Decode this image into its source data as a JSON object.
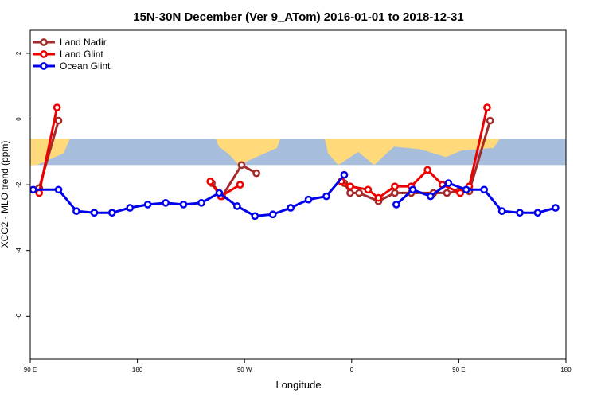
{
  "chart_data": {
    "type": "line",
    "title": "15N-30N December (Ver 9_ATom)   2016-01-01 to 2018-12-31",
    "xlabel": "Longitude",
    "ylabel": "XCO2 - MLO trend (ppm)",
    "xlim": [
      90,
      450
    ],
    "ylim": [
      -7.3,
      2.7
    ],
    "x_ticks": [
      {
        "value": 90,
        "label": "90 E"
      },
      {
        "value": 162,
        "label": "180"
      },
      {
        "value": 234,
        "label": "90 W"
      },
      {
        "value": 306,
        "label": "0"
      },
      {
        "value": 378,
        "label": "90 E"
      },
      {
        "value": 450,
        "label": "180"
      }
    ],
    "y_ticks": [
      {
        "value": 2,
        "label": "2"
      },
      {
        "value": 0,
        "label": "0"
      },
      {
        "value": -2,
        "label": "-2"
      },
      {
        "value": -4,
        "label": "-4"
      },
      {
        "value": -6,
        "label": "-6"
      }
    ],
    "legend_position": "top-left",
    "map_band": {
      "y_top": -0.6,
      "y_bottom": -1.4,
      "ocean_color": "#A6BDDB",
      "land_color": "#FFD97A"
    },
    "series": [
      {
        "name": "Land Nadir",
        "color": "#A52A2A",
        "segments": [
          [
            [
              96,
              -2.1
            ],
            [
              109,
              -0.05
            ]
          ],
          [
            [
              212,
              -1.95
            ],
            [
              219,
              -2.35
            ],
            [
              232,
              -1.4
            ],
            [
              242,
              -1.65
            ]
          ],
          [
            [
              301,
              -1.95
            ],
            [
              305,
              -2.25
            ],
            [
              311,
              -2.25
            ],
            [
              324,
              -2.5
            ],
            [
              335,
              -2.25
            ],
            [
              346,
              -2.25
            ],
            [
              361,
              -2.25
            ],
            [
              370,
              -2.25
            ],
            [
              378,
              -2.2
            ],
            [
              385,
              -2.2
            ],
            [
              399,
              -0.05
            ]
          ]
        ]
      },
      {
        "name": "Land Glint",
        "color": "#EE0000",
        "segments": [
          [
            [
              96,
              -2.25
            ],
            [
              108,
              0.35
            ]
          ],
          [
            [
              211,
              -1.9
            ],
            [
              218,
              -2.35
            ],
            [
              231,
              -2.0
            ]
          ],
          [
            [
              299,
              -1.9
            ],
            [
              305,
              -2.05
            ],
            [
              317,
              -2.15
            ],
            [
              324,
              -2.4
            ],
            [
              335,
              -2.05
            ],
            [
              346,
              -2.05
            ],
            [
              357,
              -1.55
            ],
            [
              367,
              -2.0
            ],
            [
              379,
              -2.25
            ],
            [
              385,
              -2.05
            ],
            [
              397,
              0.35
            ]
          ]
        ]
      },
      {
        "name": "Ocean Glint",
        "color": "#0000EE",
        "segments": [
          [
            [
              92,
              -2.15
            ],
            [
              109,
              -2.15
            ],
            [
              121,
              -2.8
            ],
            [
              133,
              -2.85
            ],
            [
              145,
              -2.85
            ],
            [
              157,
              -2.7
            ],
            [
              169,
              -2.6
            ],
            [
              181,
              -2.55
            ],
            [
              193,
              -2.6
            ],
            [
              205,
              -2.55
            ],
            [
              217,
              -2.25
            ],
            [
              229,
              -2.65
            ],
            [
              241,
              -2.95
            ],
            [
              253,
              -2.9
            ],
            [
              265,
              -2.7
            ],
            [
              277,
              -2.45
            ],
            [
              289,
              -2.35
            ],
            [
              301,
              -1.7
            ]
          ],
          [
            [
              336,
              -2.6
            ],
            [
              347,
              -2.15
            ],
            [
              359,
              -2.35
            ],
            [
              371,
              -1.95
            ],
            [
              383,
              -2.15
            ],
            [
              395,
              -2.15
            ],
            [
              407,
              -2.8
            ],
            [
              419,
              -2.85
            ],
            [
              431,
              -2.85
            ],
            [
              443,
              -2.7
            ]
          ]
        ]
      }
    ]
  }
}
